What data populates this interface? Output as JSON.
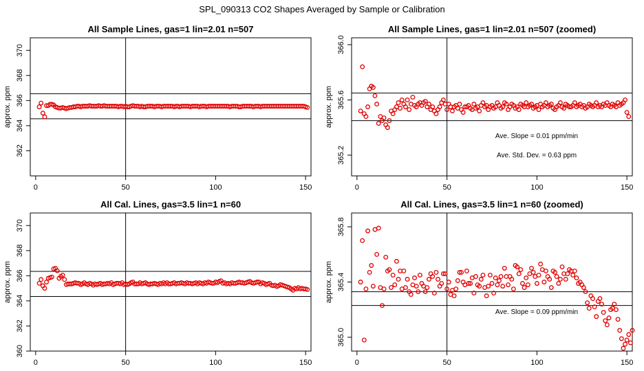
{
  "page_title": "SPL_090313  CO2 Shapes Averaged by Sample or Calibration",
  "colors": {
    "points": "#e00000",
    "axis": "#000000",
    "background": "#ffffff"
  },
  "chart_data": [
    {
      "type": "scatter",
      "title": "All Sample Lines, gas=1 lin=2.01 n=507",
      "xlabel": "",
      "ylabel": "approx. ppm",
      "xlim": [
        -3,
        153
      ],
      "ylim": [
        360,
        371
      ],
      "xticks": [
        0,
        50,
        100,
        150
      ],
      "yticks": [
        362,
        364,
        366,
        368,
        370
      ],
      "vline": 50,
      "hlines": [
        364.55,
        366.55
      ],
      "annotations": [],
      "y": [
        365.5,
        365.8,
        365.0,
        364.7,
        365.6,
        365.6,
        365.7,
        365.7,
        365.65,
        365.5,
        365.45,
        365.4,
        365.4,
        365.45,
        365.4,
        365.35,
        365.4,
        365.45,
        365.45,
        365.5,
        365.5,
        365.55,
        365.55,
        365.5,
        365.55,
        365.55,
        365.55,
        365.55,
        365.6,
        365.55,
        365.55,
        365.55,
        365.55,
        365.6,
        365.55,
        365.55,
        365.6,
        365.55,
        365.55,
        365.55,
        365.55,
        365.55,
        365.55,
        365.55,
        365.5,
        365.55,
        365.55,
        365.5,
        365.55,
        365.5,
        365.5,
        365.55,
        365.6,
        365.55,
        365.55,
        365.55,
        365.5,
        365.55,
        365.5,
        365.5,
        365.55,
        365.55,
        365.55,
        365.55,
        365.5,
        365.55,
        365.55,
        365.55,
        365.5,
        365.55,
        365.55,
        365.55,
        365.55,
        365.55,
        365.55,
        365.5,
        365.55,
        365.55,
        365.5,
        365.55,
        365.55,
        365.55,
        365.55,
        365.55,
        365.5,
        365.55,
        365.55,
        365.55,
        365.55,
        365.5,
        365.55,
        365.55,
        365.55,
        365.5,
        365.55,
        365.55,
        365.55,
        365.55,
        365.55,
        365.55,
        365.55,
        365.55,
        365.55,
        365.55,
        365.55,
        365.55,
        365.5,
        365.55,
        365.55,
        365.55,
        365.55,
        365.5,
        365.5,
        365.55,
        365.55,
        365.55,
        365.55,
        365.55,
        365.55,
        365.5,
        365.55,
        365.55,
        365.55,
        365.5,
        365.55,
        365.55,
        365.55,
        365.55,
        365.55,
        365.55,
        365.55,
        365.55,
        365.55,
        365.55,
        365.55,
        365.55,
        365.55,
        365.55,
        365.55,
        365.55,
        365.55,
        365.55,
        365.55,
        365.55,
        365.55,
        365.55,
        365.55,
        365.55,
        365.5,
        365.45
      ]
    },
    {
      "type": "scatter",
      "title": "All Sample Lines, gas=1 lin=2.01 n=507 (zoomed)",
      "xlabel": "",
      "ylabel": "approx. ppm",
      "xlim": [
        -3,
        153
      ],
      "ylim": [
        365.05,
        366.05
      ],
      "xticks": [
        0,
        50,
        100,
        150
      ],
      "yticks": [
        365.2,
        365.6,
        366.0
      ],
      "vline": 50,
      "hlines": [
        365.45,
        365.65
      ],
      "annotations": [
        "Ave. Slope =  0.01  ppm/min",
        "Ave. Std. Dev. =  0.63  ppm"
      ],
      "y": [
        365.52,
        365.84,
        365.5,
        365.48,
        365.55,
        365.68,
        365.7,
        365.69,
        365.63,
        365.57,
        365.43,
        365.48,
        365.45,
        365.47,
        365.42,
        365.4,
        365.45,
        365.52,
        365.5,
        365.53,
        365.55,
        365.58,
        365.54,
        365.6,
        365.57,
        365.55,
        365.6,
        365.53,
        365.57,
        365.62,
        365.56,
        365.55,
        365.57,
        365.58,
        365.56,
        365.58,
        365.59,
        365.55,
        365.57,
        365.53,
        365.55,
        365.52,
        365.5,
        365.53,
        365.55,
        365.58,
        365.6,
        365.57,
        365.53,
        365.57,
        365.55,
        365.52,
        365.55,
        365.56,
        365.54,
        365.57,
        365.53,
        365.51,
        365.55,
        365.55,
        365.56,
        365.54,
        365.53,
        365.57,
        365.54,
        365.55,
        365.52,
        365.56,
        365.58,
        365.55,
        365.56,
        365.53,
        365.55,
        365.56,
        365.54,
        365.55,
        365.58,
        365.56,
        365.54,
        365.55,
        365.58,
        365.57,
        365.53,
        365.55,
        365.57,
        365.56,
        365.54,
        365.55,
        365.53,
        365.57,
        365.56,
        365.55,
        365.58,
        365.55,
        365.56,
        365.57,
        365.54,
        365.55,
        365.56,
        365.53,
        365.57,
        365.55,
        365.56,
        365.58,
        365.55,
        365.56,
        365.57,
        365.54,
        365.53,
        365.55,
        365.56,
        365.58,
        365.55,
        365.54,
        365.57,
        365.56,
        365.55,
        365.55,
        365.56,
        365.58,
        365.55,
        365.56,
        365.57,
        365.55,
        365.56,
        365.54,
        365.55,
        365.57,
        365.56,
        365.55,
        365.56,
        365.58,
        365.55,
        365.56,
        365.55,
        365.57,
        365.56,
        365.58,
        365.56,
        365.55,
        365.57,
        365.56,
        365.55,
        365.58,
        365.56,
        365.57,
        365.58,
        365.6,
        365.51,
        365.48
      ]
    },
    {
      "type": "scatter",
      "title": "All Cal. Lines, gas=3.5 lin=1 n=60",
      "xlabel": "",
      "ylabel": "approx. ppm",
      "xlim": [
        -3,
        153
      ],
      "ylim": [
        360,
        371
      ],
      "xticks": [
        0,
        50,
        100,
        150
      ],
      "yticks": [
        360,
        362,
        364,
        366,
        368,
        370
      ],
      "vline": 50,
      "hlines": [
        364.35,
        366.35
      ],
      "annotations": [],
      "y": [
        365.4,
        365.7,
        365.2,
        365.0,
        365.5,
        365.8,
        365.85,
        365.9,
        366.55,
        366.6,
        366.4,
        365.8,
        365.95,
        366.05,
        365.7,
        365.3,
        365.35,
        365.35,
        365.35,
        365.4,
        365.45,
        365.4,
        365.4,
        365.3,
        365.35,
        365.45,
        365.35,
        365.3,
        365.4,
        365.35,
        365.25,
        365.35,
        365.3,
        365.35,
        365.4,
        365.3,
        365.35,
        365.35,
        365.4,
        365.35,
        365.45,
        365.3,
        365.35,
        365.4,
        365.4,
        365.35,
        365.45,
        365.3,
        365.35,
        365.3,
        365.35,
        365.45,
        365.5,
        365.35,
        365.35,
        365.35,
        365.45,
        365.35,
        365.4,
        365.45,
        365.35,
        365.3,
        365.35,
        365.35,
        365.4,
        365.35,
        365.3,
        365.4,
        365.35,
        365.45,
        365.35,
        365.45,
        365.35,
        365.35,
        365.4,
        365.45,
        365.35,
        365.4,
        365.4,
        365.45,
        365.4,
        365.35,
        365.45,
        365.4,
        365.4,
        365.35,
        365.4,
        365.45,
        365.35,
        365.45,
        365.4,
        365.35,
        365.45,
        365.4,
        365.5,
        365.45,
        365.4,
        365.4,
        365.5,
        365.45,
        365.55,
        365.6,
        365.4,
        365.45,
        365.35,
        365.4,
        365.35,
        365.45,
        365.4,
        365.4,
        365.45,
        365.5,
        365.45,
        365.45,
        365.4,
        365.45,
        365.5,
        365.55,
        365.45,
        365.4,
        365.45,
        365.5,
        365.5,
        365.35,
        365.45,
        365.4,
        365.3,
        365.35,
        365.4,
        365.25,
        365.2,
        365.25,
        365.15,
        365.2,
        365.3,
        365.25,
        365.2,
        365.15,
        365.1,
        365.05,
        364.95,
        364.85,
        365.0,
        364.95,
        365.05,
        364.95,
        365.0,
        364.95,
        364.95,
        364.9
      ]
    },
    {
      "type": "scatter",
      "title": "All Cal. Lines, gas=3.5 lin=1 n=60 (zoomed)",
      "xlabel": "",
      "ylabel": "approx. ppm",
      "xlim": [
        -3,
        153
      ],
      "ylim": [
        364.9,
        365.9
      ],
      "xticks": [
        0,
        50,
        100,
        150
      ],
      "yticks": [
        365.0,
        365.4,
        365.8
      ],
      "vline": 50,
      "hlines": [
        365.23,
        365.33
      ],
      "annotations": [
        "Ave. Slope =  0.09  ppm/min"
      ],
      "y": [
        365.4,
        365.7,
        364.98,
        365.35,
        365.77,
        365.47,
        365.52,
        365.37,
        365.78,
        365.6,
        365.79,
        365.36,
        365.23,
        365.35,
        365.58,
        365.48,
        365.49,
        365.36,
        365.45,
        365.38,
        365.55,
        365.42,
        365.48,
        365.35,
        365.48,
        365.36,
        365.42,
        365.33,
        365.31,
        365.38,
        365.43,
        365.37,
        365.33,
        365.45,
        365.39,
        365.37,
        365.33,
        365.36,
        365.42,
        365.46,
        365.44,
        365.32,
        365.47,
        365.42,
        365.37,
        365.39,
        365.46,
        365.46,
        365.35,
        365.4,
        365.31,
        365.34,
        365.3,
        365.35,
        365.41,
        365.47,
        365.47,
        365.4,
        365.38,
        365.48,
        365.39,
        365.39,
        365.43,
        365.32,
        365.44,
        365.38,
        365.37,
        365.42,
        365.45,
        365.36,
        365.3,
        365.37,
        365.45,
        365.39,
        365.32,
        365.43,
        365.38,
        365.41,
        365.44,
        365.37,
        365.5,
        365.44,
        365.38,
        365.44,
        365.42,
        365.35,
        365.52,
        365.51,
        365.46,
        365.49,
        365.39,
        365.36,
        365.43,
        365.38,
        365.46,
        365.5,
        365.47,
        365.44,
        365.39,
        365.45,
        365.53,
        365.49,
        365.4,
        365.48,
        365.44,
        365.42,
        365.36,
        365.48,
        365.47,
        365.44,
        365.39,
        365.42,
        365.51,
        365.46,
        365.42,
        365.46,
        365.49,
        365.48,
        365.45,
        365.48,
        365.43,
        365.39,
        365.4,
        365.38,
        365.36,
        365.33,
        365.25,
        365.21,
        365.3,
        365.28,
        365.22,
        365.15,
        365.26,
        365.28,
        365.24,
        365.18,
        365.12,
        365.09,
        365.14,
        365.2,
        365.21,
        365.24,
        365.2,
        365.13,
        365.05,
        364.99,
        364.92,
        364.95,
        364.98,
        365.02,
        364.96,
        365.05
      ]
    }
  ]
}
